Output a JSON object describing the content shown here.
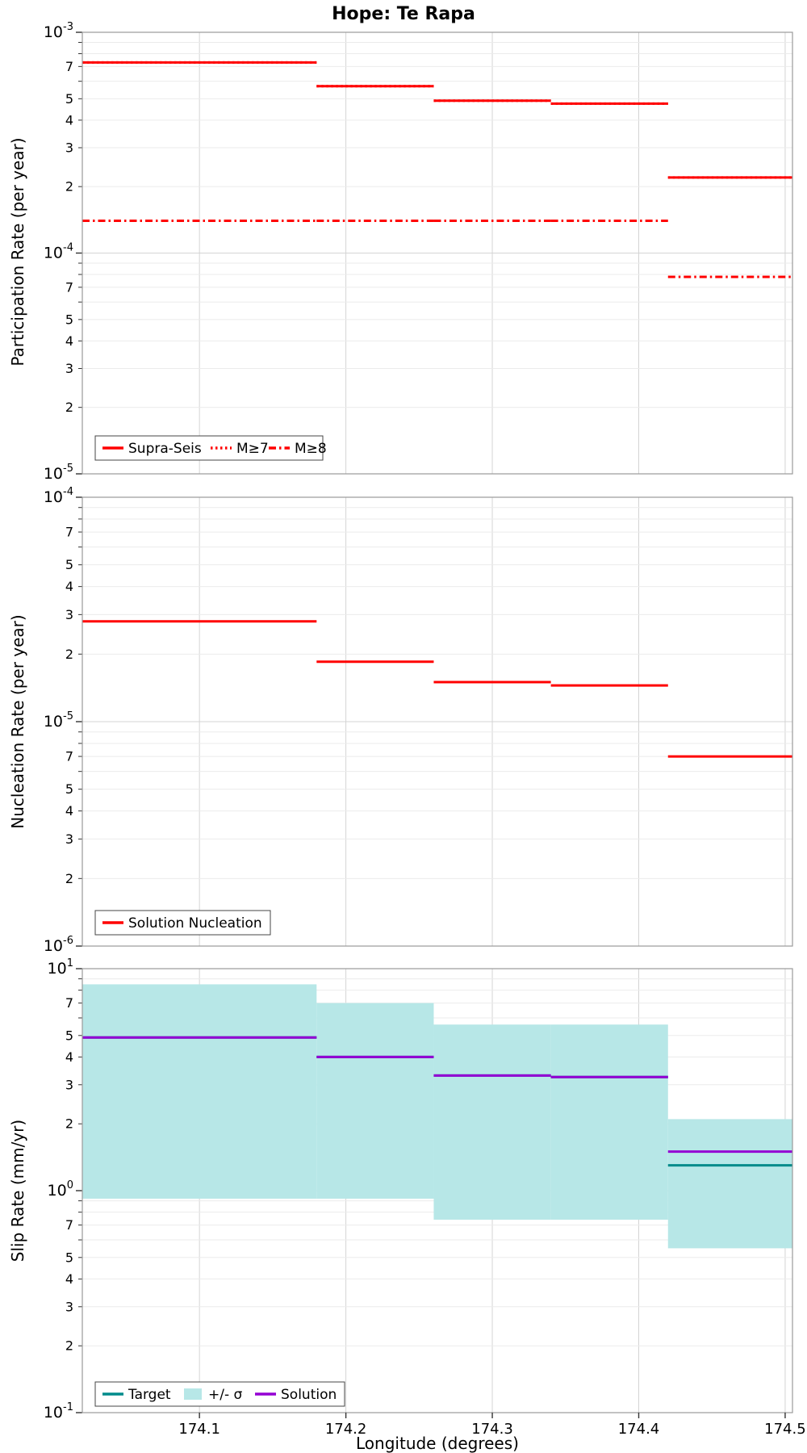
{
  "title": "Hope: Te Rapa",
  "xlabel": "Longitude (degrees)",
  "x": {
    "lim": [
      174.02,
      174.505
    ],
    "ticks": [
      174.1,
      174.2,
      174.3,
      174.4,
      174.5
    ],
    "tick_labels": [
      "174.1",
      "174.2",
      "174.3",
      "174.4",
      "174.5"
    ]
  },
  "segment_edges": [
    174.02,
    174.18,
    174.26,
    174.34,
    174.42,
    174.505
  ],
  "y_minor_labels": [
    7,
    5,
    4,
    3,
    2
  ],
  "colors": {
    "red": "#ff0000",
    "teal": "#008b8b",
    "purple": "#9400d3",
    "band": "#b7e7e7",
    "grid_major": "#d4d4d4",
    "grid_minor": "#ebebeb",
    "border": "#9a9a9a",
    "tick": "#333333"
  },
  "chart_data": [
    {
      "type": "line",
      "panel": "participation-rate",
      "ylabel": "Participation Rate (per year)",
      "ylim": [
        1e-05,
        0.001
      ],
      "x_axis": "shared longitude, log y, step lines per fault subsection",
      "series": [
        {
          "name": "Supra-Seis",
          "style": "solid",
          "color": "#ff0000",
          "values": [
            0.00073,
            0.00057,
            0.00049,
            0.000475,
            0.00022
          ]
        },
        {
          "name": "M≥7",
          "style": "dotted",
          "color": "#ff0000",
          "values": [
            0.00073,
            0.00057,
            0.00049,
            0.000475,
            0.00022
          ]
        },
        {
          "name": "M≥8",
          "style": "dashdot",
          "color": "#ff0000",
          "values": [
            0.00014,
            0.00014,
            0.00014,
            0.00014,
            7.8e-05
          ]
        }
      ],
      "legend": [
        {
          "label": "Supra-Seis",
          "sample": "line",
          "style": "solid",
          "color": "#ff0000"
        },
        {
          "label": "M≥7",
          "sample": "line",
          "style": "dotted",
          "color": "#ff0000"
        },
        {
          "label": "M≥8",
          "sample": "line",
          "style": "dashdot",
          "color": "#ff0000"
        }
      ]
    },
    {
      "type": "line",
      "panel": "nucleation-rate",
      "ylabel": "Nucleation Rate (per year)",
      "ylim": [
        1e-06,
        0.0001
      ],
      "series": [
        {
          "name": "Solution Nucleation",
          "style": "solid",
          "color": "#ff0000",
          "values": [
            2.8e-05,
            1.85e-05,
            1.5e-05,
            1.45e-05,
            7e-06
          ]
        }
      ],
      "legend": [
        {
          "label": "Solution Nucleation",
          "sample": "line",
          "style": "solid",
          "color": "#ff0000"
        }
      ]
    },
    {
      "type": "line+band",
      "panel": "slip-rate",
      "ylabel": "Slip Rate (mm/yr)",
      "ylim": [
        0.1,
        10
      ],
      "band": {
        "name": "+/- σ",
        "color": "#b7e7e7",
        "hi": [
          8.5,
          7.0,
          5.6,
          5.6,
          2.1
        ],
        "lo": [
          0.92,
          0.92,
          0.74,
          0.74,
          0.55
        ]
      },
      "series": [
        {
          "name": "Target",
          "style": "solid",
          "color": "#008b8b",
          "values": [
            4.9,
            4.0,
            3.3,
            3.25,
            1.3
          ]
        },
        {
          "name": "Solution",
          "style": "solid",
          "color": "#9400d3",
          "values": [
            4.9,
            4.0,
            3.3,
            3.25,
            1.5
          ]
        }
      ],
      "legend": [
        {
          "label": "Target",
          "sample": "line",
          "style": "solid",
          "color": "#008b8b"
        },
        {
          "label": "+/- σ",
          "sample": "patch",
          "color": "#b7e7e7"
        },
        {
          "label": "Solution",
          "sample": "line",
          "style": "solid",
          "color": "#9400d3"
        }
      ]
    }
  ]
}
